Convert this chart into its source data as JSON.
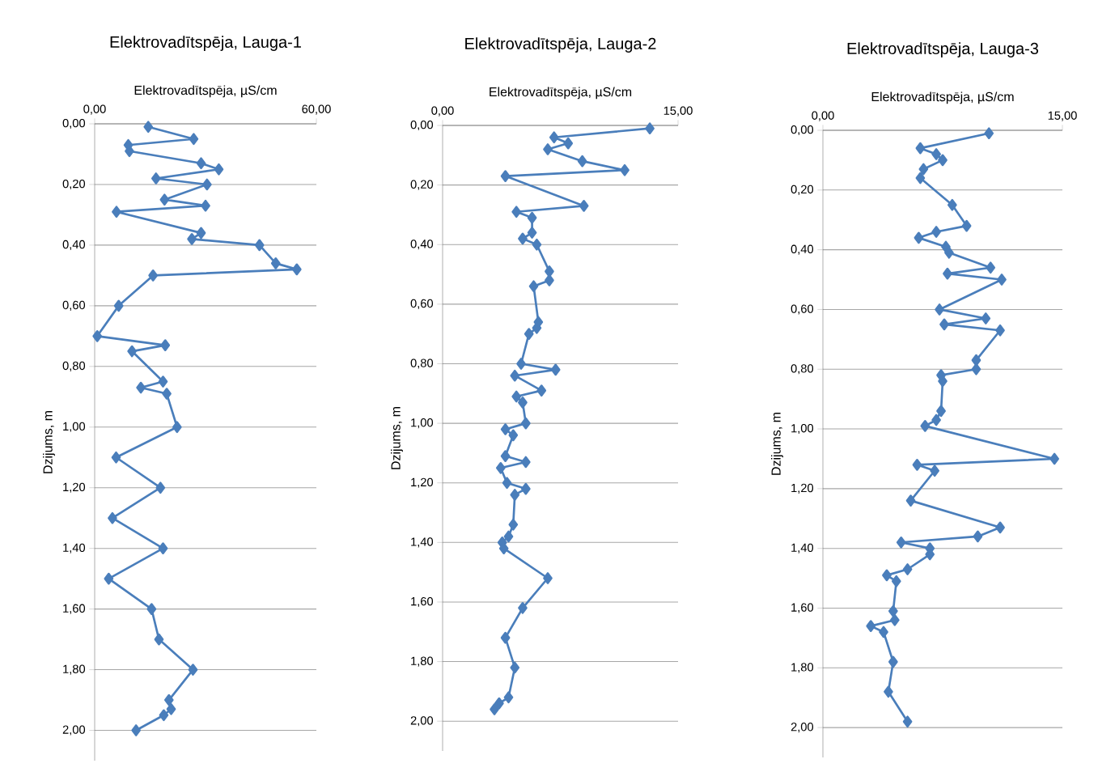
{
  "chart_data": [
    {
      "type": "line",
      "title": "Elektrovadītspēja, Lauga-1",
      "xlabel": "Elektrovadītspēja, µS/cm",
      "ylabel": "Dzijums, m",
      "color": "#4a7ebb",
      "marker": "diamond",
      "grid": "y",
      "xlim": [
        0,
        60
      ],
      "xticks": [
        {
          "value": 0,
          "label": "0,00"
        },
        {
          "value": 60,
          "label": "60,00"
        }
      ],
      "ylim": [
        2.1,
        0
      ],
      "yticks": [
        {
          "value": 0,
          "label": "0,00"
        },
        {
          "value": 0.2,
          "label": "0,20"
        },
        {
          "value": 0.4,
          "label": "0,40"
        },
        {
          "value": 0.6,
          "label": "0,60"
        },
        {
          "value": 0.8,
          "label": "0,80"
        },
        {
          "value": 1.0,
          "label": "1,00"
        },
        {
          "value": 1.2,
          "label": "1,20"
        },
        {
          "value": 1.4,
          "label": "1,40"
        },
        {
          "value": 1.6,
          "label": "1,60"
        },
        {
          "value": 1.8,
          "label": "1,80"
        },
        {
          "value": 2.0,
          "label": "2,00"
        }
      ],
      "x": [
        14.5,
        26.8,
        9.1,
        9.4,
        28.8,
        33.6,
        16.6,
        30.4,
        18.9,
        30.0,
        5.9,
        28.8,
        26.3,
        44.6,
        49.0,
        54.7,
        15.8,
        6.5,
        0.7,
        19.1,
        10.1,
        18.5,
        12.5,
        19.5,
        22.3,
        5.8,
        17.8,
        4.8,
        18.5,
        3.8,
        15.4,
        17.4,
        26.6,
        20.1,
        20.7,
        18.7,
        11.2
      ],
      "values": [
        0.01,
        0.05,
        0.07,
        0.09,
        0.13,
        0.15,
        0.18,
        0.2,
        0.25,
        0.27,
        0.29,
        0.36,
        0.38,
        0.4,
        0.46,
        0.48,
        0.5,
        0.6,
        0.7,
        0.73,
        0.75,
        0.85,
        0.87,
        0.89,
        1.0,
        1.1,
        1.2,
        1.3,
        1.4,
        1.5,
        1.6,
        1.7,
        1.8,
        1.9,
        1.93,
        1.95,
        2.0
      ]
    },
    {
      "type": "line",
      "title": "Elektrovadītspēja, Lauga-2",
      "xlabel": "Elektrovadītspēja, µS/cm",
      "ylabel": "Dzijums, m",
      "color": "#4a7ebb",
      "marker": "diamond",
      "grid": "y",
      "xlim": [
        0,
        15
      ],
      "xticks": [
        {
          "value": 0,
          "label": "0,00"
        },
        {
          "value": 15,
          "label": "15,00"
        }
      ],
      "ylim": [
        2.1,
        0
      ],
      "yticks": [
        {
          "value": 0,
          "label": "0,00"
        },
        {
          "value": 0.2,
          "label": "0,20"
        },
        {
          "value": 0.4,
          "label": "0,40"
        },
        {
          "value": 0.6,
          "label": "0,60"
        },
        {
          "value": 0.8,
          "label": "0,80"
        },
        {
          "value": 1.0,
          "label": "1,00"
        },
        {
          "value": 1.2,
          "label": "1,20"
        },
        {
          "value": 1.4,
          "label": "1,40"
        },
        {
          "value": 1.6,
          "label": "1,60"
        },
        {
          "value": 1.8,
          "label": "1,80"
        },
        {
          "value": 2.0,
          "label": "2,00"
        }
      ],
      "x": [
        13.2,
        7.1,
        8.0,
        6.7,
        8.9,
        11.6,
        4.0,
        9.0,
        4.7,
        5.7,
        5.7,
        5.1,
        6.0,
        6.8,
        6.8,
        5.8,
        6.1,
        6.0,
        5.5,
        5.0,
        7.2,
        4.6,
        6.3,
        4.7,
        5.1,
        5.3,
        4.0,
        4.5,
        4.0,
        5.3,
        3.7,
        4.1,
        5.3,
        4.6,
        4.5,
        4.2,
        3.8,
        3.9,
        6.7,
        5.1,
        4.0,
        4.6,
        4.2,
        3.6,
        3.3
      ],
      "values": [
        0.01,
        0.04,
        0.06,
        0.08,
        0.12,
        0.15,
        0.17,
        0.27,
        0.29,
        0.31,
        0.36,
        0.38,
        0.4,
        0.49,
        0.52,
        0.54,
        0.66,
        0.68,
        0.7,
        0.8,
        0.82,
        0.84,
        0.89,
        0.91,
        0.93,
        1.0,
        1.02,
        1.04,
        1.11,
        1.13,
        1.15,
        1.2,
        1.22,
        1.24,
        1.34,
        1.38,
        1.4,
        1.42,
        1.52,
        1.62,
        1.72,
        1.82,
        1.92,
        1.94,
        1.96
      ]
    },
    {
      "type": "line",
      "title": "Elektrovadītspēja, Lauga-3",
      "xlabel": "Elektrovadītspēja, µS/cm",
      "ylabel": "Dzijums, m",
      "color": "#4a7ebb",
      "marker": "diamond",
      "grid": "y",
      "xlim": [
        0,
        15
      ],
      "xticks": [
        {
          "value": 0,
          "label": "0,00"
        },
        {
          "value": 15,
          "label": "15,00"
        }
      ],
      "ylim": [
        2.1,
        0
      ],
      "yticks": [
        {
          "value": 0,
          "label": "0,00"
        },
        {
          "value": 0.2,
          "label": "0,20"
        },
        {
          "value": 0.4,
          "label": "0,40"
        },
        {
          "value": 0.6,
          "label": "0,60"
        },
        {
          "value": 0.8,
          "label": "0,80"
        },
        {
          "value": 1.0,
          "label": "1,00"
        },
        {
          "value": 1.2,
          "label": "1,20"
        },
        {
          "value": 1.4,
          "label": "1,40"
        },
        {
          "value": 1.6,
          "label": "1,60"
        },
        {
          "value": 1.8,
          "label": "1,80"
        },
        {
          "value": 2.0,
          "label": "2,00"
        }
      ],
      "x": [
        10.4,
        6.1,
        7.1,
        7.5,
        6.3,
        6.1,
        8.1,
        9.0,
        7.1,
        6.0,
        7.7,
        7.9,
        10.5,
        7.8,
        11.2,
        7.3,
        10.2,
        7.6,
        11.1,
        9.6,
        9.6,
        7.4,
        7.5,
        7.4,
        7.1,
        6.4,
        14.5,
        5.9,
        7.0,
        5.5,
        11.1,
        9.7,
        4.9,
        6.7,
        6.7,
        5.3,
        4.0,
        4.6,
        4.4,
        4.5,
        3.0,
        3.8,
        4.4,
        4.1,
        5.3
      ],
      "values": [
        0.01,
        0.06,
        0.08,
        0.1,
        0.13,
        0.16,
        0.25,
        0.32,
        0.34,
        0.36,
        0.39,
        0.41,
        0.46,
        0.48,
        0.5,
        0.6,
        0.63,
        0.65,
        0.67,
        0.77,
        0.8,
        0.82,
        0.84,
        0.94,
        0.97,
        0.99,
        1.1,
        1.12,
        1.14,
        1.24,
        1.33,
        1.36,
        1.38,
        1.4,
        1.42,
        1.47,
        1.49,
        1.51,
        1.61,
        1.64,
        1.66,
        1.68,
        1.78,
        1.88,
        1.98
      ]
    }
  ]
}
